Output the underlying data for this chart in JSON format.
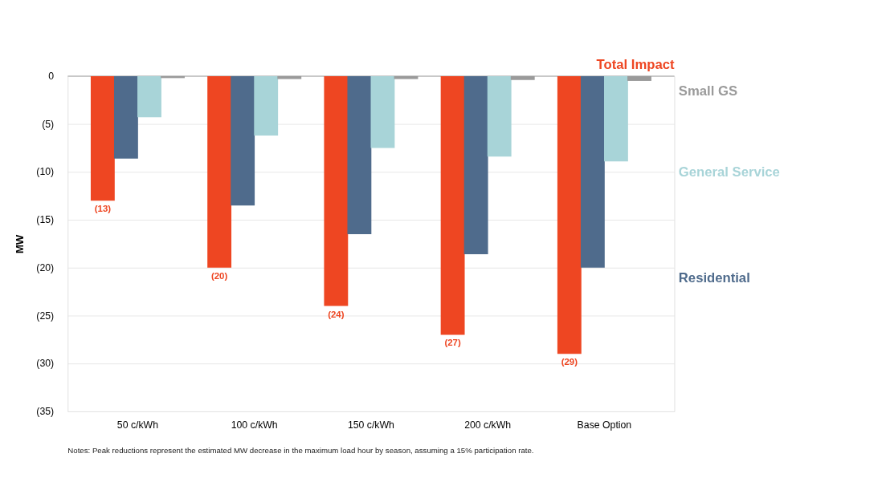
{
  "chart_data": {
    "type": "bar",
    "ylabel": "MW",
    "categories": [
      "50 c/kWh",
      "100 c/kWh",
      "150 c/kWh",
      "200 c/kWh",
      "Base Option"
    ],
    "series": [
      {
        "name": "Total Impact",
        "color": "#ee4622",
        "values": [
          -13,
          -20,
          -24,
          -27,
          -29
        ],
        "value_labels": [
          "(13)",
          "(20)",
          "(24)",
          "(27)",
          "(29)"
        ]
      },
      {
        "name": "Residential",
        "color": "#4f6b8c",
        "values": [
          -8.6,
          -13.5,
          -16.5,
          -18.6,
          -20.0
        ]
      },
      {
        "name": "General Service",
        "color": "#a8d4d8",
        "values": [
          -4.3,
          -6.2,
          -7.5,
          -8.4,
          -8.9
        ]
      },
      {
        "name": "Small GS",
        "color": "#9a9a9a",
        "values": [
          -0.2,
          -0.3,
          -0.3,
          -0.4,
          -0.5
        ]
      }
    ],
    "ylim": [
      -35,
      0
    ],
    "yticks": [
      0,
      {
        "value": -5,
        "label": "(5)"
      },
      {
        "value": -10,
        "label": "(10)"
      },
      {
        "value": -15,
        "label": "(15)"
      },
      {
        "value": -20,
        "label": "(20)"
      },
      {
        "value": -25,
        "label": "(25)"
      },
      {
        "value": -30,
        "label": "(30)"
      },
      {
        "value": -35,
        "label": "(35)"
      }
    ],
    "grid": "y",
    "legend": false,
    "annotations": [
      "Notes: Peak reductions represent the estimated MW decrease in the maximum load hour by season, assuming a 15% participation rate."
    ]
  }
}
